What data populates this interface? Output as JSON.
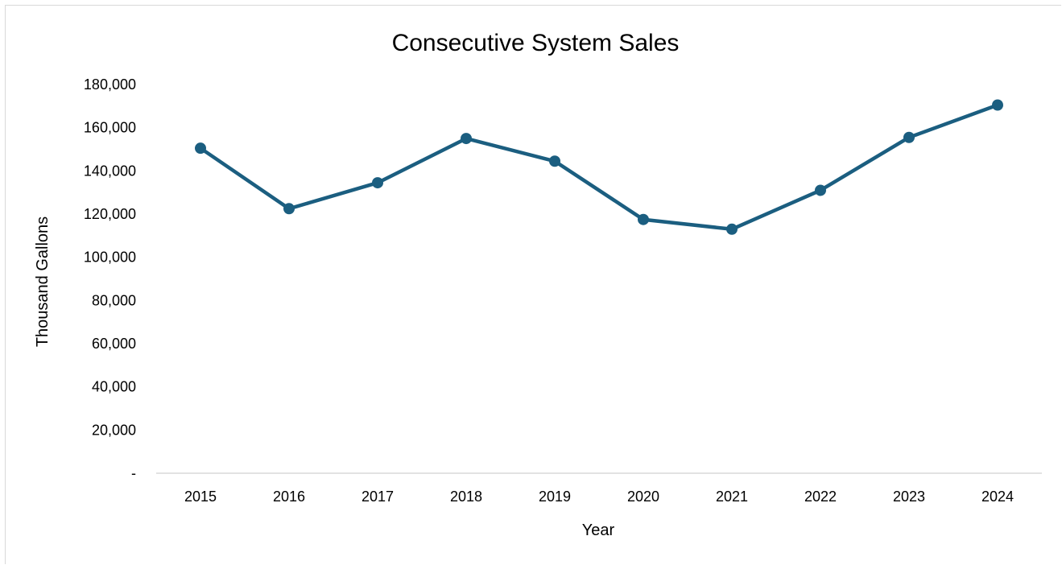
{
  "chart_data": {
    "type": "line",
    "title": "Consecutive System Sales",
    "xlabel": "Year",
    "ylabel": "Thousand Gallons",
    "categories": [
      "2015",
      "2016",
      "2017",
      "2018",
      "2019",
      "2020",
      "2021",
      "2022",
      "2023",
      "2024"
    ],
    "series": [
      {
        "values": [
          150500,
          122500,
          134500,
          155000,
          144500,
          117500,
          113000,
          131000,
          155500,
          170500
        ]
      }
    ],
    "ylim": [
      0,
      180000
    ],
    "y_ticks": [
      0,
      20000,
      40000,
      60000,
      80000,
      100000,
      120000,
      140000,
      160000,
      180000
    ],
    "y_tick_labels": [
      "-",
      "20,000",
      "40,000",
      "60,000",
      "80,000",
      "100,000",
      "120,000",
      "140,000",
      "160,000",
      "180,000"
    ],
    "grid": false,
    "legend": "none",
    "colors": {
      "line": "#1b5e80",
      "axis": "#d9d9d9"
    }
  }
}
